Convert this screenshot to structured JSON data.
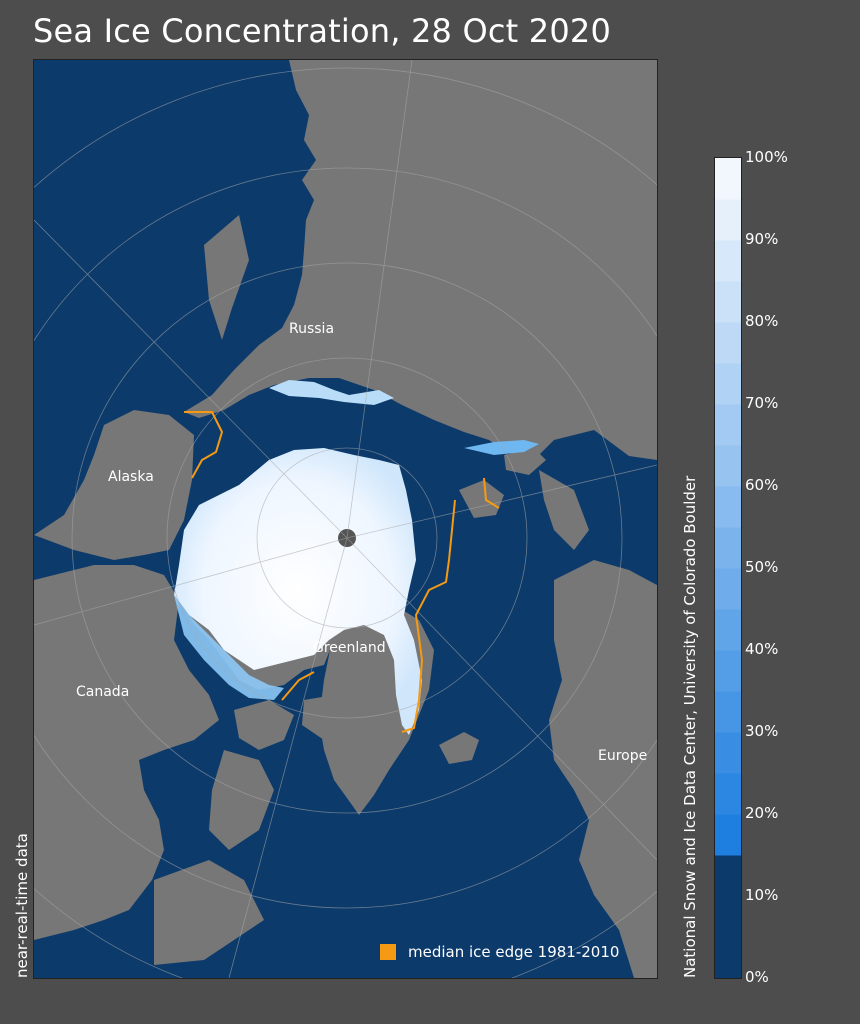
{
  "title": "Sea Ice Concentration, 28 Oct 2020",
  "side_label_left": "near-real-time data",
  "side_label_right": "National Snow and Ice Data Center, University of Colorado Boulder",
  "legend": {
    "label": "median ice edge 1981-2010",
    "color": "#f59a12"
  },
  "place_labels": {
    "russia": "Russia",
    "alaska": "Alaska",
    "canada": "Canada",
    "greenland": "Greenland",
    "europe": "Europe"
  },
  "colorbar": {
    "ticks": [
      "100%",
      "90%",
      "80%",
      "70%",
      "60%",
      "50%",
      "40%",
      "30%",
      "20%",
      "10%",
      "0%"
    ],
    "open_water_threshold_percent": 15,
    "colors": {
      "ocean": "#0b3a6b",
      "land": "#777777",
      "pole_hole": "#555555",
      "ice_max": "#ffffff",
      "ice_min": "#1f7fe0"
    }
  }
}
